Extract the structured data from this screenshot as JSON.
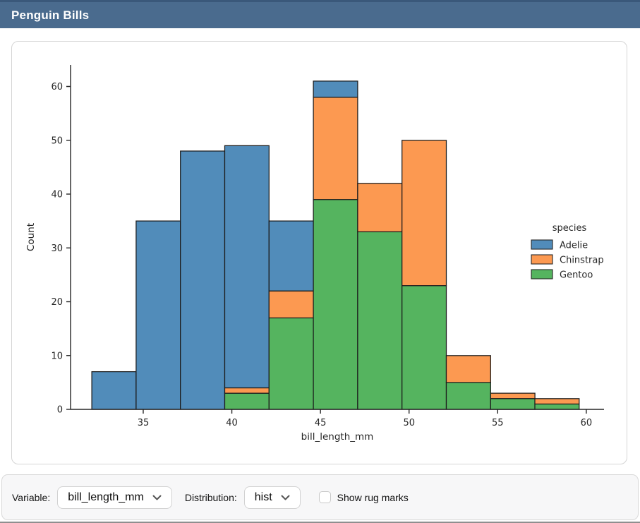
{
  "title_bar": {
    "title": "Penguin Bills",
    "bg_color": "#4a6b8e"
  },
  "controls": {
    "variable_label": "Variable:",
    "variable_value": "bill_length_mm",
    "distribution_label": "Distribution:",
    "distribution_value": "hist",
    "rug_checkbox_label": "Show rug marks",
    "rug_checked": false
  },
  "chart_data": {
    "type": "bar",
    "subtype": "stacked_histogram",
    "title": "",
    "xlabel": "bill_length_mm",
    "ylabel": "Count",
    "bin_start": 32.1,
    "bin_width": 2.5,
    "bin_edges": [
      32.1,
      34.6,
      37.1,
      39.6,
      42.1,
      44.6,
      47.1,
      49.6,
      52.1,
      54.6,
      57.1,
      59.6
    ],
    "series": [
      {
        "name": "Adelie",
        "color": "#518CBA",
        "values": [
          7,
          35,
          48,
          45,
          13,
          3,
          0,
          0,
          0,
          0,
          0
        ]
      },
      {
        "name": "Chinstrap",
        "color": "#FC9951",
        "values": [
          0,
          0,
          0,
          1,
          5,
          19,
          9,
          27,
          5,
          1,
          1
        ]
      },
      {
        "name": "Gentoo",
        "color": "#55B45F",
        "values": [
          0,
          0,
          0,
          3,
          17,
          39,
          33,
          23,
          5,
          2,
          1
        ]
      }
    ],
    "stack_order_bottom_to_top": [
      "Gentoo",
      "Chinstrap",
      "Adelie"
    ],
    "totals": [
      7,
      35,
      48,
      49,
      35,
      61,
      42,
      50,
      10,
      3,
      2
    ],
    "xticks": [
      35,
      40,
      45,
      50,
      55,
      60
    ],
    "yticks": [
      0,
      10,
      20,
      30,
      40,
      50,
      60
    ],
    "xlim": [
      30.9,
      61.0
    ],
    "ylim": [
      0,
      64
    ],
    "legend": {
      "title": "species",
      "position": "right",
      "entries": [
        "Adelie",
        "Chinstrap",
        "Gentoo"
      ]
    },
    "bar_edge_color": "#1c1c1c",
    "axis_color": "#262626",
    "grid": false
  }
}
